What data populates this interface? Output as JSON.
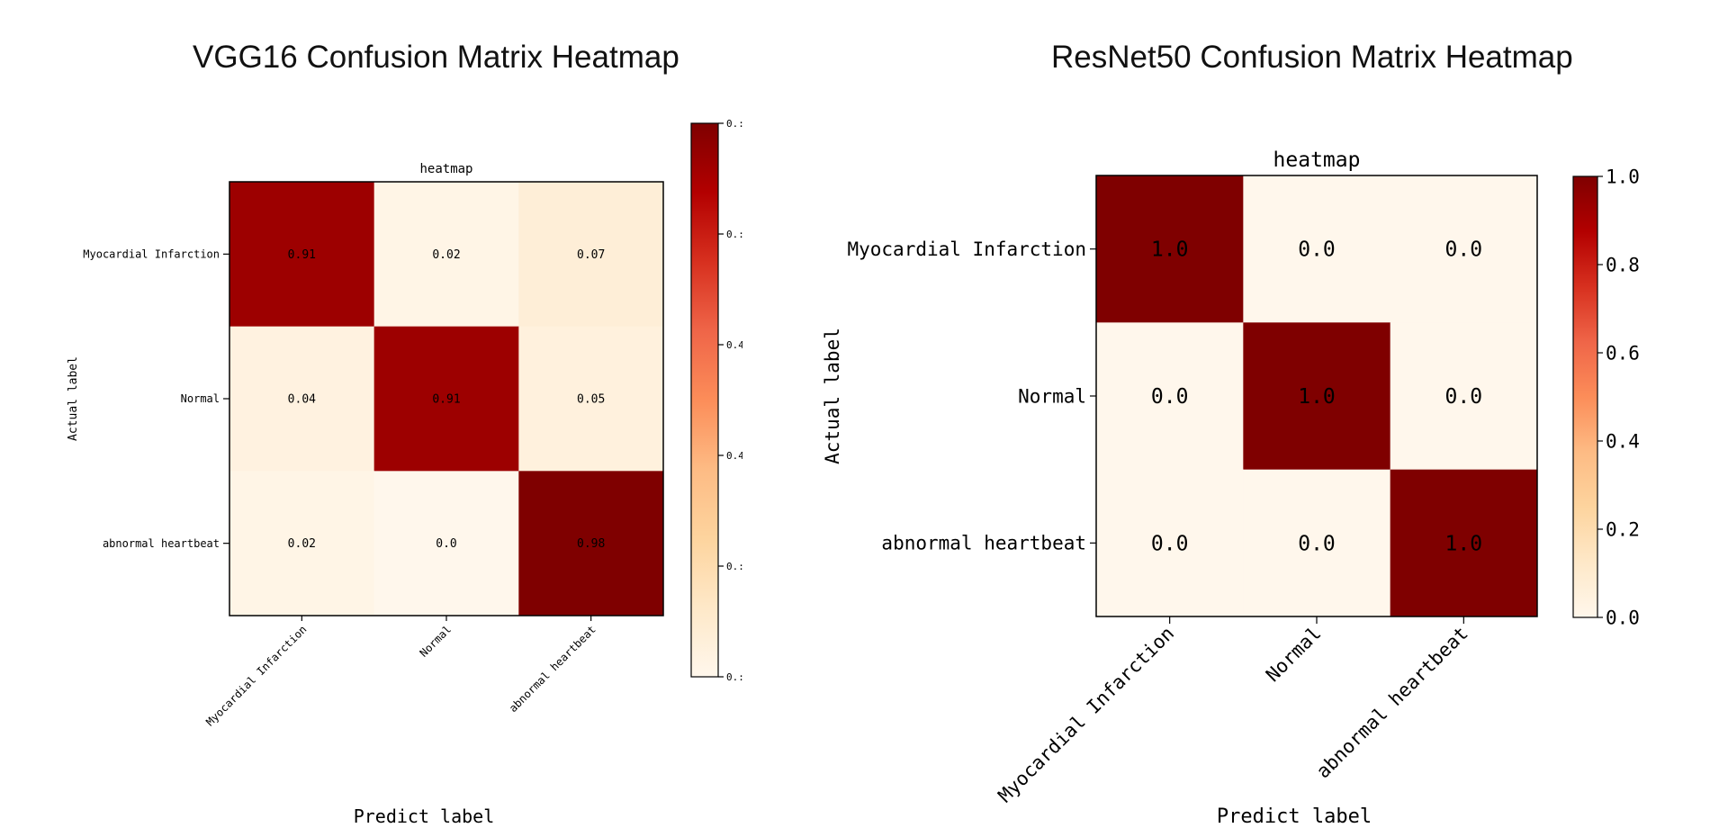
{
  "chart_data": [
    {
      "type": "heatmap",
      "panel_title": "VGG16 Confusion Matrix Heatmap",
      "title": "heatmap",
      "xlabel": "Predict label",
      "ylabel": "Actual label",
      "x_categories": [
        "Myocardial Infarction",
        "Normal",
        "abnormal heartbeat"
      ],
      "y_categories": [
        "Myocardial Infarction",
        "Normal",
        "abnormal heartbeat"
      ],
      "values": [
        [
          0.91,
          0.02,
          0.07
        ],
        [
          0.04,
          0.91,
          0.05
        ],
        [
          0.02,
          0.0,
          0.98
        ]
      ],
      "cell_labels": [
        [
          "0.91",
          "0.02",
          "0.07"
        ],
        [
          "0.04",
          "0.91",
          "0.05"
        ],
        [
          "0.02",
          "0.0",
          "0.98"
        ]
      ],
      "vmin": 0.0,
      "vmax": 0.98,
      "colorbar_ticks": [
        "0.:",
        "0.:",
        "0.4",
        "0.4",
        "0.:",
        "0.:"
      ],
      "colormap": "OrRd"
    },
    {
      "type": "heatmap",
      "panel_title": "ResNet50 Confusion Matrix Heatmap",
      "title": "heatmap",
      "xlabel": "Predict label",
      "ylabel": "Actual label",
      "x_categories": [
        "Myocardial Infarction",
        "Normal",
        "abnormal heartbeat"
      ],
      "y_categories": [
        "Myocardial Infarction",
        "Normal",
        "abnormal heartbeat"
      ],
      "values": [
        [
          1.0,
          0.0,
          0.0
        ],
        [
          0.0,
          1.0,
          0.0
        ],
        [
          0.0,
          0.0,
          1.0
        ]
      ],
      "cell_labels": [
        [
          "1.0",
          "0.0",
          "0.0"
        ],
        [
          "0.0",
          "1.0",
          "0.0"
        ],
        [
          "0.0",
          "0.0",
          "1.0"
        ]
      ],
      "vmin": 0.0,
      "vmax": 1.0,
      "colorbar_ticks": [
        "0.0",
        "0.2",
        "0.4",
        "0.6",
        "0.8",
        "1.0"
      ],
      "colormap": "OrRd"
    }
  ]
}
